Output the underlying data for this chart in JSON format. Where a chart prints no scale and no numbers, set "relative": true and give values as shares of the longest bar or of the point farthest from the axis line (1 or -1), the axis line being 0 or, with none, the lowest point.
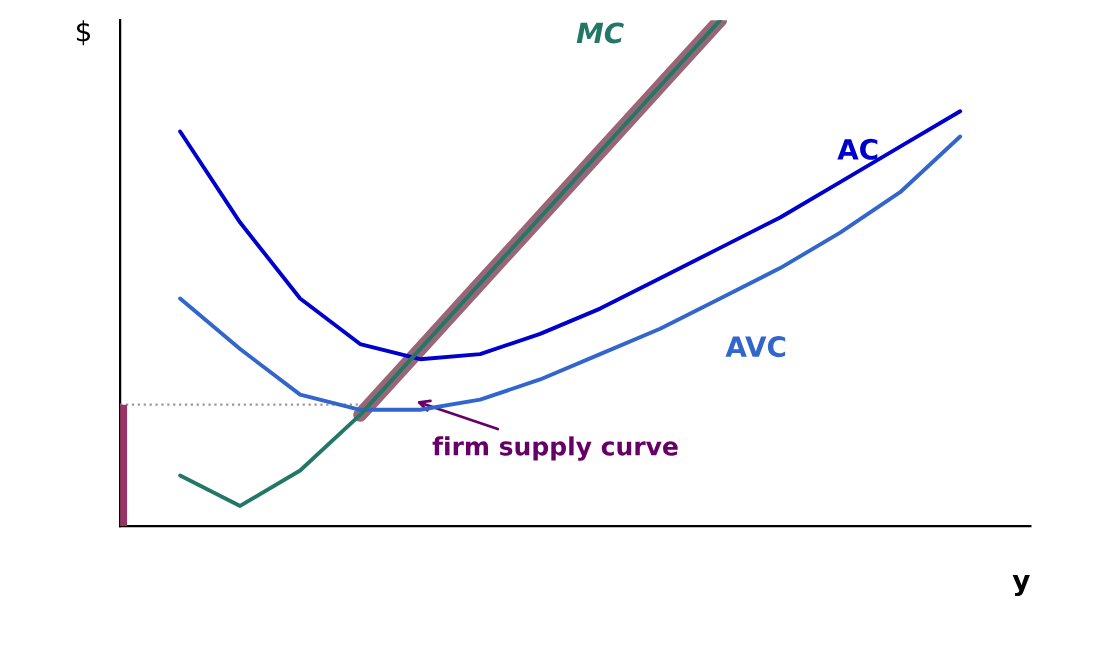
{
  "chart_data": {
    "type": "line",
    "relative": true,
    "xlabel": "y",
    "ylabel": "$",
    "grid": false,
    "categories": [
      null,
      null,
      null,
      null,
      null,
      null,
      null,
      null,
      null,
      null,
      null,
      null,
      null,
      null,
      null,
      null
    ],
    "series": [
      {
        "color": "#999999",
        "line_style": "dotted",
        "values": [
          0.24,
          0.24,
          0.24,
          0.24,
          0.24,
          null,
          null,
          null,
          null,
          null,
          null,
          null,
          null,
          null,
          null,
          null
        ]
      },
      {
        "name": "AVC",
        "color": "#3366cc",
        "values": [
          null,
          0.45,
          0.35,
          0.26,
          0.23,
          0.23,
          0.25,
          0.29,
          0.34,
          0.39,
          0.45,
          0.51,
          0.58,
          0.66,
          0.77,
          null
        ]
      },
      {
        "name": "AC",
        "color": "#0000cc",
        "values": [
          null,
          0.78,
          0.6,
          0.45,
          0.36,
          0.33,
          0.34,
          0.38,
          0.43,
          0.49,
          0.55,
          0.61,
          0.68,
          0.75,
          0.82,
          null
        ]
      },
      {
        "color": "#996677",
        "line_style": "solid",
        "values": [
          null,
          null,
          null,
          null,
          0.22,
          0.35,
          0.48,
          0.61,
          0.74,
          0.87,
          1.0,
          null,
          null,
          null,
          null,
          null
        ]
      },
      {
        "name": "MC",
        "color": "#227766",
        "values": [
          null,
          0.1,
          0.04,
          0.11,
          0.22,
          0.35,
          0.48,
          0.61,
          0.74,
          0.87,
          1.0,
          null,
          null,
          null,
          null,
          null
        ]
      }
    ],
    "annotations": [
      "firm supply curve"
    ]
  }
}
